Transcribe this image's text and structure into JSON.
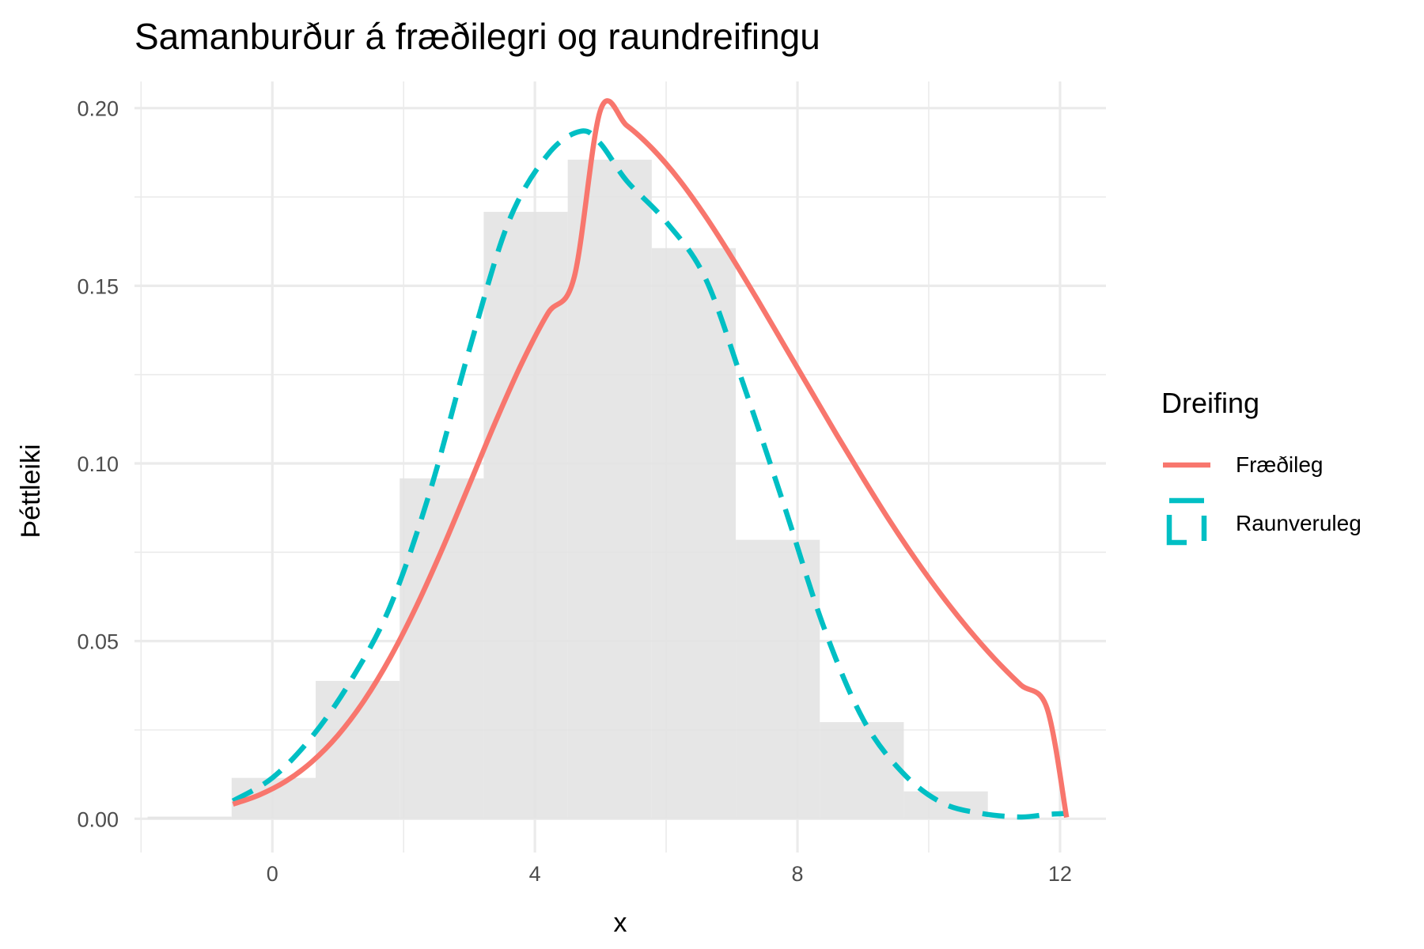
{
  "chart_data": {
    "type": "histogram-density",
    "title": "Samanburður á fræðilegri og raundreifingu",
    "xlabel": "x",
    "ylabel": "Þéttleiki",
    "xlim": [
      -2.1,
      12.7
    ],
    "ylim": [
      -0.0095,
      0.2075
    ],
    "x_ticks": [
      0,
      4,
      8,
      12
    ],
    "x_tick_labels": [
      "0",
      "4",
      "8",
      "12"
    ],
    "y_ticks": [
      0,
      0.05,
      0.1,
      0.15,
      0.2
    ],
    "y_tick_labels": [
      "0.00",
      "0.05",
      "0.10",
      "0.15",
      "0.20"
    ],
    "grid": true,
    "histogram": {
      "color": "#e3e3e3",
      "bins": [
        {
          "x0": -1.9,
          "x1": -0.62,
          "density": 0.0006
        },
        {
          "x0": -0.62,
          "x1": 0.66,
          "density": 0.0115
        },
        {
          "x0": 0.66,
          "x1": 1.94,
          "density": 0.0388
        },
        {
          "x0": 1.94,
          "x1": 3.22,
          "density": 0.0958
        },
        {
          "x0": 3.22,
          "x1": 4.5,
          "density": 0.1708
        },
        {
          "x0": 4.5,
          "x1": 5.78,
          "density": 0.1855
        },
        {
          "x0": 5.78,
          "x1": 7.06,
          "density": 0.1606
        },
        {
          "x0": 7.06,
          "x1": 8.34,
          "density": 0.0785
        },
        {
          "x0": 8.34,
          "x1": 9.62,
          "density": 0.0272
        },
        {
          "x0": 9.62,
          "x1": 10.9,
          "density": 0.0077
        }
      ]
    },
    "legend": {
      "title": "Dreifing",
      "position": "right"
    },
    "series": [
      {
        "name": "Fræðileg",
        "style": "solid",
        "color": "#f8766d",
        "x": [
          -0.6,
          -0.2,
          0.2,
          0.6,
          1.0,
          1.4,
          1.8,
          2.2,
          2.6,
          3.0,
          3.4,
          3.8,
          4.2,
          4.6,
          5.0,
          5.4,
          5.8,
          6.2,
          6.6,
          7.0,
          7.4,
          7.8,
          8.2,
          8.6,
          9.0,
          9.4,
          9.8,
          10.2,
          10.6,
          11.0,
          11.4,
          11.8,
          12.1
        ],
        "y": [
          0.0041,
          0.0067,
          0.0105,
          0.016,
          0.0235,
          0.0333,
          0.0455,
          0.06,
          0.0764,
          0.094,
          0.1117,
          0.1282,
          0.1423,
          0.1525,
          0.1995,
          0.1951,
          0.1884,
          0.1798,
          0.1695,
          0.158,
          0.1458,
          0.1332,
          0.1206,
          0.108,
          0.0958,
          0.084,
          0.073,
          0.0628,
          0.0535,
          0.0451,
          0.0377,
          0.0312,
          0.0004
        ]
      },
      {
        "name": "Raunveruleg",
        "style": "dashed",
        "color": "#00bfc4",
        "x": [
          -0.6,
          0.0,
          0.6,
          1.2,
          1.8,
          2.4,
          3.0,
          3.6,
          4.2,
          4.7,
          5.0,
          5.4,
          6.0,
          6.6,
          7.2,
          7.8,
          8.4,
          9.0,
          9.6,
          10.2,
          10.8,
          11.4,
          11.8,
          12.1
        ],
        "y": [
          0.005,
          0.0115,
          0.023,
          0.039,
          0.06,
          0.092,
          0.132,
          0.168,
          0.187,
          0.1935,
          0.19,
          0.1795,
          0.168,
          0.152,
          0.121,
          0.088,
          0.054,
          0.028,
          0.013,
          0.0045,
          0.0015,
          0.0005,
          0.0012,
          0.0015
        ]
      }
    ]
  }
}
